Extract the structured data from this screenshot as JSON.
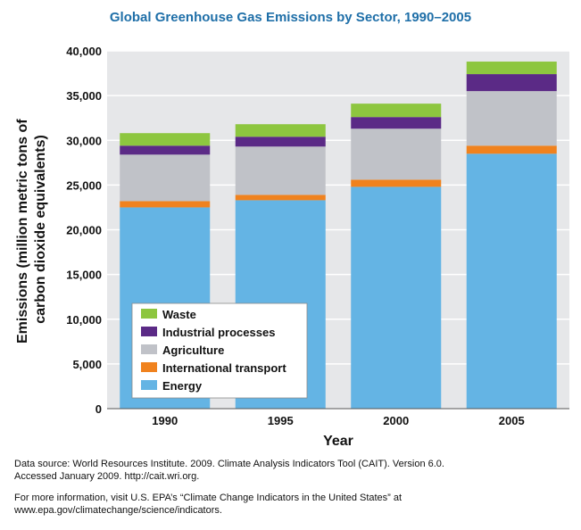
{
  "chart_data": {
    "type": "bar",
    "stacked": true,
    "title": "Global Greenhouse Gas Emissions by Sector, 1990–2005",
    "xlabel": "Year",
    "ylabel_lines": [
      "Emissions (million metric tons of",
      "carbon dioxide equivalents)"
    ],
    "categories": [
      "1990",
      "1995",
      "2000",
      "2005"
    ],
    "ylim": [
      0,
      40000
    ],
    "yticks": [
      0,
      5000,
      10000,
      15000,
      20000,
      25000,
      30000,
      35000,
      40000
    ],
    "ytick_labels": [
      "0",
      "5,000",
      "10,000",
      "15,000",
      "20,000",
      "25,000",
      "30,000",
      "35,000",
      "40,000"
    ],
    "grid": true,
    "legend_position": "bottom-left",
    "series": [
      {
        "name": "Energy",
        "color": "#64b4e4",
        "values": [
          22500,
          23300,
          24800,
          28500
        ]
      },
      {
        "name": "International transport",
        "color": "#f0821e",
        "values": [
          700,
          600,
          800,
          900
        ]
      },
      {
        "name": "Agriculture",
        "color": "#c0c2c8",
        "values": [
          5200,
          5400,
          5700,
          6100
        ]
      },
      {
        "name": "Industrial processes",
        "color": "#5b2a86",
        "values": [
          1000,
          1100,
          1300,
          1900
        ]
      },
      {
        "name": "Waste",
        "color": "#8dc63f",
        "values": [
          1400,
          1400,
          1500,
          1400
        ]
      }
    ],
    "legend_order": [
      "Waste",
      "Industrial processes",
      "Agriculture",
      "International transport",
      "Energy"
    ]
  },
  "notes": {
    "source_line1": "Data source: World Resources Institute. 2009. Climate Analysis Indicators Tool (CAIT). Version 6.0.",
    "source_line2": "Accessed January 2009. http://cait.wri.org.",
    "info_line1": "For more information, visit U.S. EPA’s “Climate Change Indicators in the United States” at",
    "info_line2": "www.epa.gov/climatechange/science/indicators."
  }
}
